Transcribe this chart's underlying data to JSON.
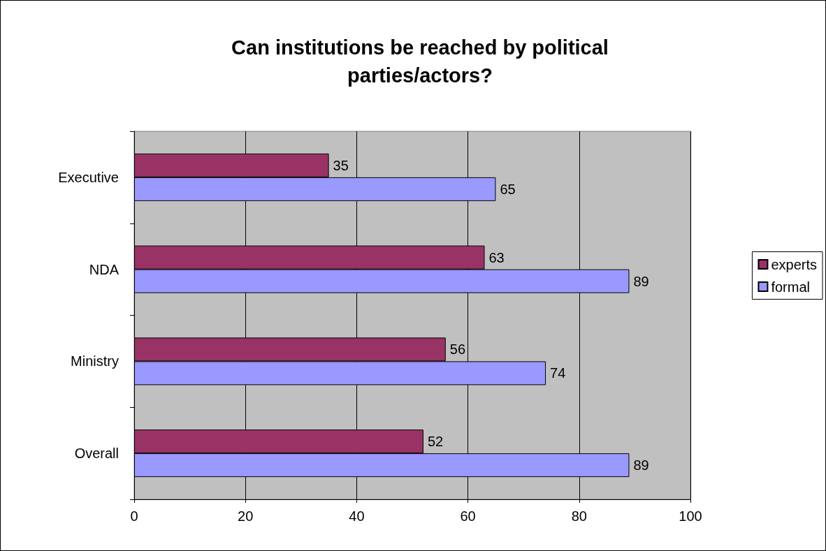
{
  "chart_data": {
    "type": "bar",
    "title": "Can institutions be reached by political\nparties/actors?",
    "orientation": "horizontal",
    "categories": [
      "Executive",
      "NDA",
      "Ministry",
      "Overall"
    ],
    "series": [
      {
        "name": "experts",
        "color": "#993366",
        "values": [
          35,
          63,
          56,
          52
        ]
      },
      {
        "name": "formal",
        "color": "#9999ff",
        "values": [
          65,
          89,
          74,
          89
        ]
      }
    ],
    "xlim": [
      0,
      100
    ],
    "xticks": [
      0,
      20,
      40,
      60,
      80,
      100
    ],
    "grid": "x",
    "legend": "right",
    "data_labels": true
  }
}
